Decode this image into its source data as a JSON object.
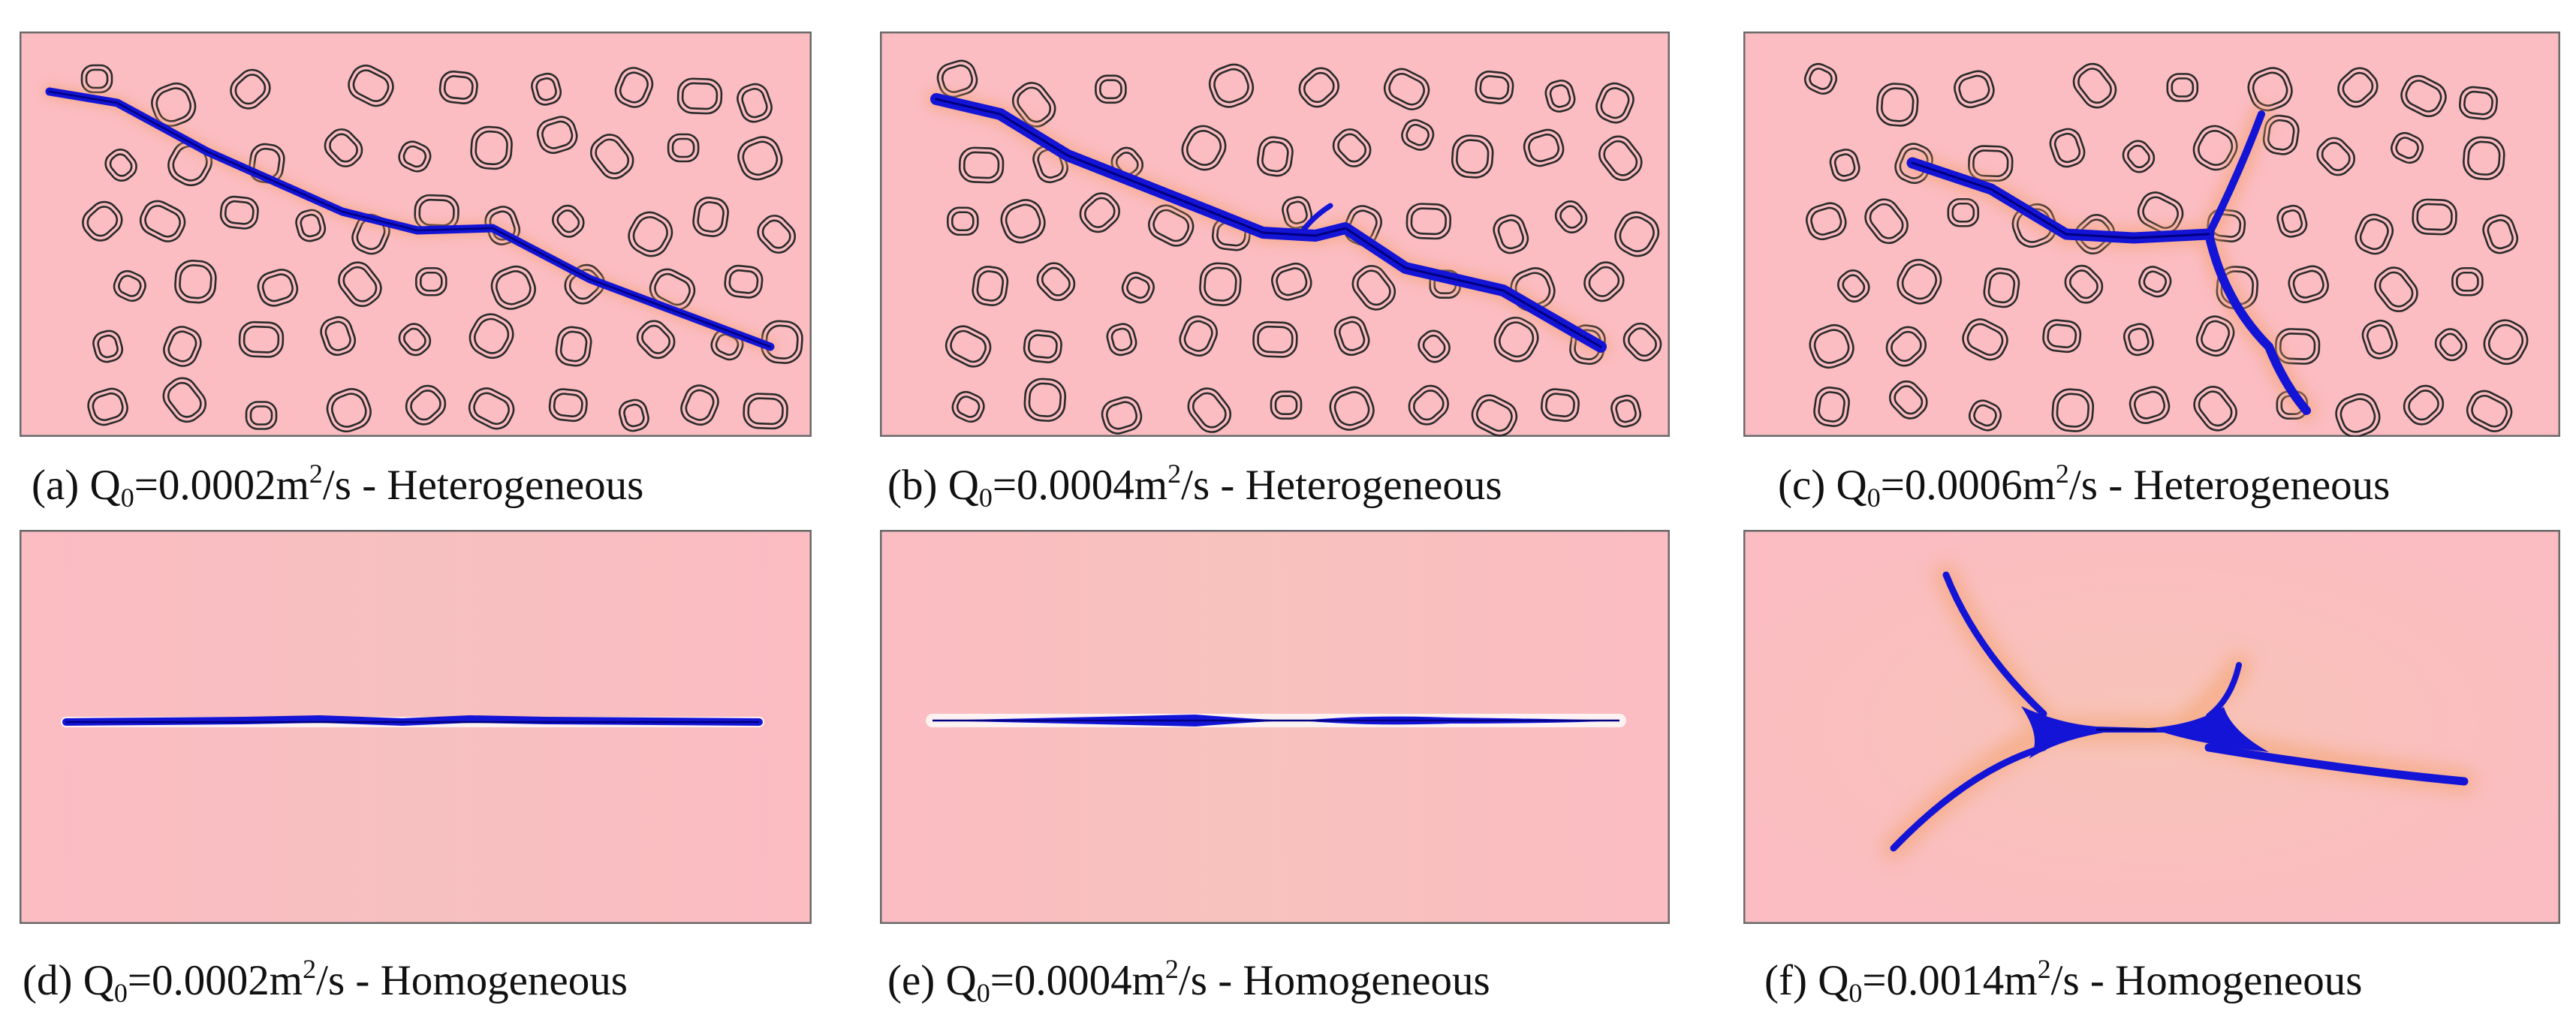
{
  "figure": {
    "panels": [
      {
        "id": "a",
        "letter": "(a)",
        "q_symbol": "Q",
        "q_sub": "0",
        "q_value": "=0.0002m",
        "q_exp": "2",
        "q_unit": "/s",
        "model": " - Heterogeneous",
        "crack": "single-inclined"
      },
      {
        "id": "b",
        "letter": "(b)",
        "q_symbol": "Q",
        "q_sub": "0",
        "q_value": "=0.0004m",
        "q_exp": "2",
        "q_unit": "/s",
        "model": " - Heterogeneous",
        "crack": "single-inclined-wide"
      },
      {
        "id": "c",
        "letter": "(c)",
        "q_symbol": "Q",
        "q_sub": "0",
        "q_value": "=0.0006m",
        "q_exp": "2",
        "q_unit": "/s",
        "model": " - Heterogeneous",
        "crack": "branched"
      },
      {
        "id": "d",
        "letter": "(d)",
        "q_symbol": "Q",
        "q_sub": "0",
        "q_value": "=0.0002m",
        "q_exp": "2",
        "q_unit": "/s",
        "model": " - Homogeneous",
        "crack": "horizontal"
      },
      {
        "id": "e",
        "letter": "(e)",
        "q_symbol": "Q",
        "q_sub": "0",
        "q_value": "=0.0004m",
        "q_exp": "2",
        "q_unit": "/s",
        "model": " - Homogeneous",
        "crack": "horizontal-wide"
      },
      {
        "id": "f",
        "letter": "(f)",
        "q_symbol": "Q",
        "q_sub": "0",
        "q_value": "=0.0014m",
        "q_exp": "2",
        "q_unit": "/s",
        "model": " - Homogeneous",
        "crack": "four-branch"
      }
    ],
    "colors": {
      "domain_fill": "#fbbcc2",
      "crack": "#1414d6",
      "crack_core": "#000080",
      "crack_halo": "#f4a16a",
      "inclusion_stroke": "#2a2a2a",
      "frame": "#6a6a6a"
    }
  }
}
